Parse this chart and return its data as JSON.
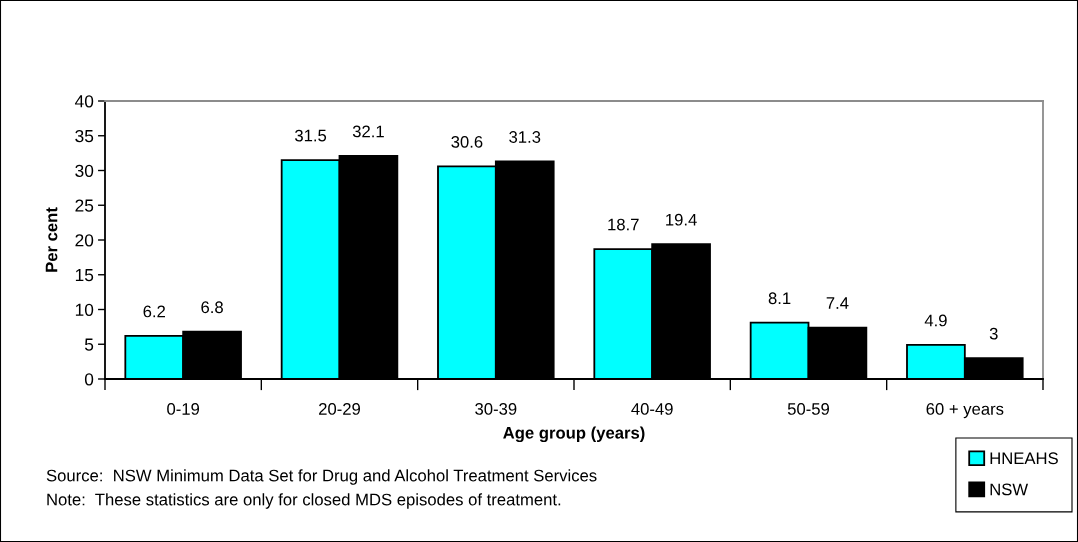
{
  "chart_data": {
    "type": "bar",
    "categories": [
      "0-19",
      "20-29",
      "30-39",
      "40-49",
      "50-59",
      "60 + years"
    ],
    "series": [
      {
        "name": "HNEAHS",
        "color": "#00ffff",
        "values": [
          6.2,
          31.5,
          30.6,
          18.7,
          8.1,
          4.9
        ]
      },
      {
        "name": "NSW",
        "color": "#000000",
        "values": [
          6.8,
          32.1,
          31.3,
          19.4,
          7.4,
          3
        ]
      }
    ],
    "xlabel": "Age group (years)",
    "ylabel": "Per cent",
    "ylim": [
      0,
      40
    ],
    "yticks": [
      0,
      5,
      10,
      15,
      20,
      25,
      30,
      35,
      40
    ],
    "data_labels": true,
    "legend": "bottom right",
    "annotations": [
      "Source:  NSW Minimum Data Set for Drug and Alcohol Treatment Services",
      "Note:  These statistics are only for closed MDS episodes of treatment."
    ]
  }
}
